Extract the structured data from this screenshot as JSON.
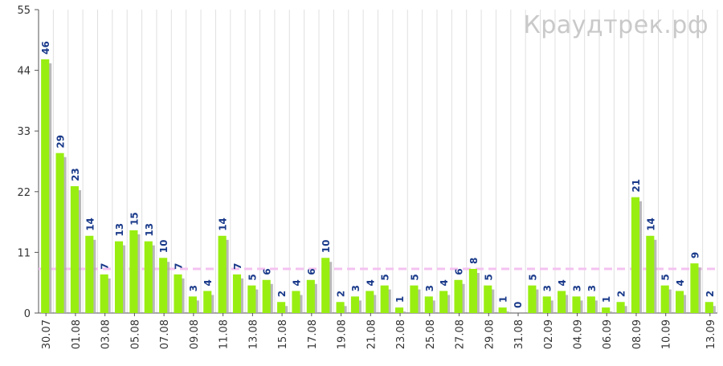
{
  "watermark": "Краудтрек.рф",
  "chart_data": {
    "type": "bar",
    "title": "",
    "xlabel": "",
    "ylabel": "",
    "ylim": [
      0,
      55
    ],
    "yticks": [
      0,
      11,
      22,
      33,
      44,
      55
    ],
    "grid": "vertical",
    "average_line": 8,
    "x_tick_labels": [
      "30.07",
      "01.08",
      "03.08",
      "05.08",
      "07.08",
      "09.08",
      "11.08",
      "13.08",
      "15.08",
      "17.08",
      "19.08",
      "21.08",
      "23.08",
      "25.08",
      "27.08",
      "29.08",
      "31.08",
      "02.09",
      "04.09",
      "06.09",
      "08.09",
      "10.09",
      "13.09"
    ],
    "categories": [
      "30.07",
      "31.07",
      "01.08",
      "02.08",
      "03.08",
      "04.08",
      "05.08",
      "06.08",
      "07.08",
      "08.08",
      "09.08",
      "10.08",
      "11.08",
      "12.08",
      "13.08",
      "14.08",
      "15.08",
      "16.08",
      "17.08",
      "18.08",
      "19.08",
      "20.08",
      "21.08",
      "22.08",
      "23.08",
      "24.08",
      "25.08",
      "26.08",
      "27.08",
      "28.08",
      "29.08",
      "30.08",
      "31.08",
      "01.09",
      "02.09",
      "03.09",
      "04.09",
      "05.09",
      "06.09",
      "07.09",
      "08.09",
      "09.09",
      "10.09",
      "11.09",
      "12.09",
      "13.09"
    ],
    "values": [
      46,
      29,
      23,
      14,
      7,
      13,
      15,
      13,
      10,
      7,
      3,
      4,
      14,
      7,
      5,
      6,
      2,
      4,
      6,
      10,
      2,
      3,
      4,
      5,
      1,
      5,
      3,
      4,
      6,
      8,
      5,
      1,
      0,
      5,
      3,
      4,
      3,
      3,
      1,
      2,
      21,
      14,
      5,
      4,
      9,
      2
    ],
    "colors": {
      "bar": "#99ee11",
      "shadow": "#a8a8a8",
      "label": "#1a3a8a",
      "average": "#f4c2f0",
      "grid": "#e0e0e0",
      "axis": "#555555"
    }
  }
}
